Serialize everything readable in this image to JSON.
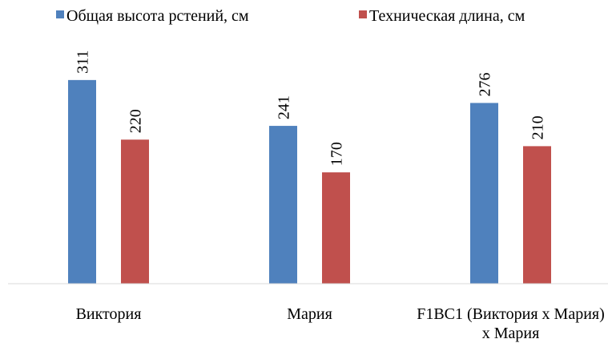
{
  "chart_data": {
    "type": "bar",
    "categories": [
      "Виктория",
      "Мария",
      "F1BC1 (Виктория х Мария) х Мария"
    ],
    "series": [
      {
        "name": "Общая высота рстений, см",
        "color": "#4f81bd",
        "values": [
          311,
          241,
          276
        ]
      },
      {
        "name": "Техническая длина, см",
        "color": "#c0504d",
        "values": [
          220,
          170,
          210
        ]
      }
    ],
    "ylim": [
      0,
      350
    ],
    "legend": "top"
  }
}
